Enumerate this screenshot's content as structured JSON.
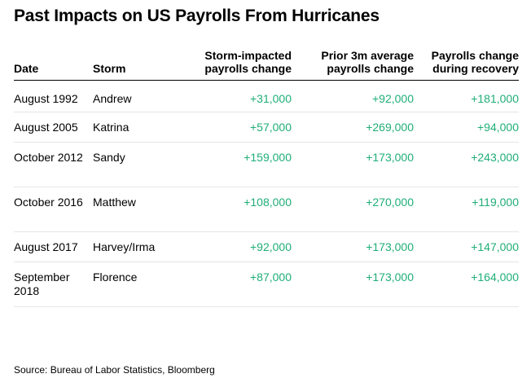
{
  "title": "Past Impacts on US Payrolls From Hurricanes",
  "columns": {
    "date": "Date",
    "storm": "Storm",
    "impacted_1": "Storm-impacted",
    "impacted_2": "payrolls change",
    "prior_1": "Prior 3m average",
    "prior_2": "payrolls change",
    "recovery_1": "Payrolls change",
    "recovery_2": "during recovery"
  },
  "rows": [
    {
      "date": "August 1992",
      "storm": "Andrew",
      "impacted": "+31,000",
      "prior": "+92,000",
      "recovery": "+181,000"
    },
    {
      "date": "August 2005",
      "storm": "Katrina",
      "impacted": "+57,000",
      "prior": "+269,000",
      "recovery": "+94,000"
    },
    {
      "date": "October 2012",
      "storm": "Sandy",
      "impacted": "+159,000",
      "prior": "+173,000",
      "recovery": "+243,000"
    },
    {
      "date": "October 2016",
      "storm": "Matthew",
      "impacted": "+108,000",
      "prior": "+270,000",
      "recovery": "+119,000"
    },
    {
      "date": "August 2017",
      "storm": "Harvey/Irma",
      "impacted": "+92,000",
      "prior": "+173,000",
      "recovery": "+147,000"
    },
    {
      "date": "September 2018",
      "storm": "Florence",
      "impacted": "+87,000",
      "prior": "+173,000",
      "recovery": "+164,000"
    }
  ],
  "source": "Source: Bureau of Labor Statistics, Bloomberg",
  "colors": {
    "positive": "#1fae77",
    "text": "#000000",
    "rule": "#e5e5e5"
  }
}
